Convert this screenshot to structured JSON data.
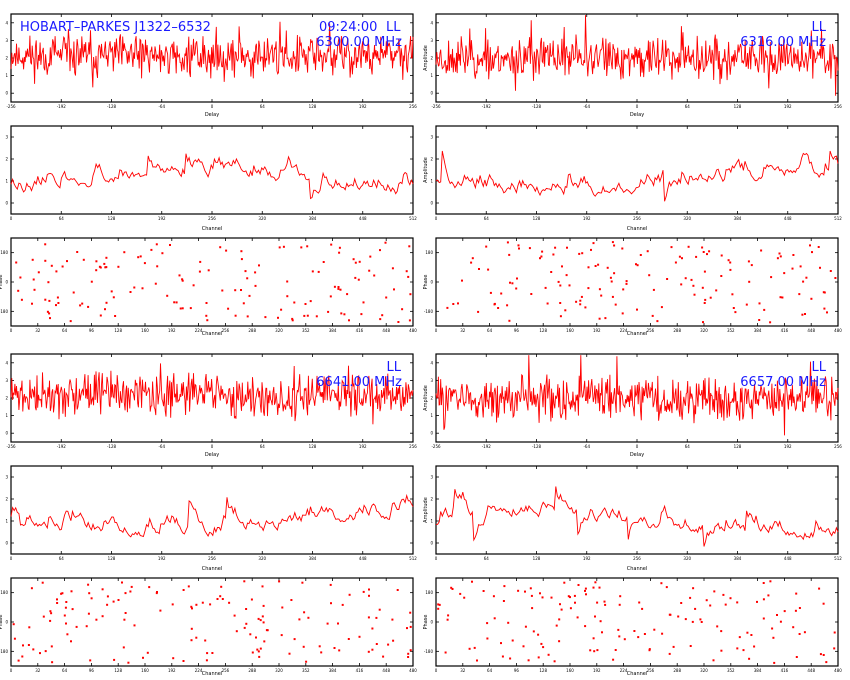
{
  "header": {
    "title": "HOBART–PARKES J1322–6532",
    "time": "09:24:00",
    "pol_ll_1": "LL",
    "pol_ll_2": "LL",
    "pol_ll_3": "LL",
    "pol_ll_4": "LL",
    "freq_1": "6300.00 MHz",
    "freq_2": "6316.00 MHz",
    "freq_3": "6641.00 MHz",
    "freq_4": "6657.00 MHz"
  },
  "colors": {
    "trace": "#ff0000",
    "overlay_text": "#1a1aff",
    "axes": "#000000"
  },
  "chart_data": [
    {
      "type": "line",
      "panel": "delay",
      "block": 1,
      "col": 1,
      "xlabel": "Delay",
      "ylabel": "",
      "xlim": [
        -256,
        256
      ],
      "ylim": [
        0,
        4
      ],
      "x_ticks": [
        "-256",
        "-192",
        "-128",
        "-64",
        "0",
        "64",
        "128",
        "192",
        "256"
      ],
      "y_ticks": [
        "0",
        "1",
        "2",
        "3",
        "4"
      ],
      "seed": 11,
      "mean": 2.1,
      "spread": 0.9
    },
    {
      "type": "line",
      "panel": "delay",
      "block": 1,
      "col": 2,
      "xlabel": "Delay",
      "ylabel": "Amplitude",
      "xlim": [
        -256,
        256
      ],
      "ylim": [
        0,
        4
      ],
      "x_ticks": [
        "-256",
        "-192",
        "-128",
        "-64",
        "0",
        "64",
        "128",
        "192",
        "256"
      ],
      "y_ticks": [
        "0",
        "1",
        "2",
        "3",
        "4"
      ],
      "seed": 23,
      "mean": 2.0,
      "spread": 0.9
    },
    {
      "type": "line",
      "panel": "channel",
      "block": 1,
      "col": 1,
      "xlabel": "Channel",
      "ylabel": "",
      "xlim": [
        0,
        512
      ],
      "ylim": [
        0,
        3
      ],
      "x_ticks": [
        "0",
        "64",
        "128",
        "192",
        "256",
        "320",
        "384",
        "448",
        "512"
      ],
      "y_ticks": [
        "0",
        "1",
        "2",
        "3"
      ],
      "seed": 37,
      "mean": 1.0,
      "spread": 0.85
    },
    {
      "type": "line",
      "panel": "channel",
      "block": 1,
      "col": 2,
      "xlabel": "Channel",
      "ylabel": "Amplitude",
      "xlim": [
        0,
        512
      ],
      "ylim": [
        0,
        3
      ],
      "x_ticks": [
        "0",
        "64",
        "128",
        "192",
        "256",
        "320",
        "384",
        "448",
        "512"
      ],
      "y_ticks": [
        "0",
        "1",
        "2",
        "3"
      ],
      "seed": 41,
      "mean": 1.0,
      "spread": 0.85
    },
    {
      "type": "scatter",
      "panel": "phase",
      "block": 1,
      "col": 1,
      "xlabel": "Channel",
      "ylabel": "Phase",
      "xlim": [
        0,
        512
      ],
      "ylim": [
        -180,
        180
      ],
      "x_ticks": [
        "0",
        "32",
        "64",
        "96",
        "128",
        "160",
        "192",
        "224",
        "256",
        "288",
        "320",
        "352",
        "384",
        "416",
        "448",
        "480"
      ],
      "y_ticks": [
        "-180",
        "0",
        "180"
      ],
      "seed": 53,
      "count": 150
    },
    {
      "type": "scatter",
      "panel": "phase",
      "block": 1,
      "col": 2,
      "xlabel": "Channel",
      "ylabel": "Phase",
      "xlim": [
        0,
        512
      ],
      "ylim": [
        -180,
        180
      ],
      "x_ticks": [
        "0",
        "32",
        "64",
        "96",
        "128",
        "160",
        "192",
        "224",
        "256",
        "288",
        "320",
        "352",
        "384",
        "416",
        "448",
        "480"
      ],
      "y_ticks": [
        "-180",
        "0",
        "180"
      ],
      "seed": 61,
      "count": 150
    },
    {
      "type": "line",
      "panel": "delay",
      "block": 2,
      "col": 1,
      "xlabel": "Delay",
      "ylabel": "",
      "xlim": [
        -256,
        256
      ],
      "ylim": [
        0,
        4
      ],
      "x_ticks": [
        "-256",
        "-192",
        "-128",
        "-64",
        "0",
        "64",
        "128",
        "192",
        "256"
      ],
      "y_ticks": [
        "0",
        "1",
        "2",
        "3",
        "4"
      ],
      "seed": 71,
      "mean": 2.1,
      "spread": 0.9
    },
    {
      "type": "line",
      "panel": "delay",
      "block": 2,
      "col": 2,
      "xlabel": "Delay",
      "ylabel": "Amplitude",
      "xlim": [
        -256,
        256
      ],
      "ylim": [
        0,
        4
      ],
      "x_ticks": [
        "-256",
        "-192",
        "-128",
        "-64",
        "0",
        "64",
        "128",
        "192",
        "256"
      ],
      "y_ticks": [
        "0",
        "1",
        "2",
        "3",
        "4"
      ],
      "seed": 83,
      "mean": 2.0,
      "spread": 0.9
    },
    {
      "type": "line",
      "panel": "channel",
      "block": 2,
      "col": 1,
      "xlabel": "Channel",
      "ylabel": "",
      "xlim": [
        0,
        512
      ],
      "ylim": [
        0,
        3
      ],
      "x_ticks": [
        "0",
        "64",
        "128",
        "192",
        "256",
        "320",
        "384",
        "448",
        "512"
      ],
      "y_ticks": [
        "0",
        "1",
        "2",
        "3"
      ],
      "seed": 97,
      "mean": 1.0,
      "spread": 0.85
    },
    {
      "type": "line",
      "panel": "channel",
      "block": 2,
      "col": 2,
      "xlabel": "Channel",
      "ylabel": "Amplitude",
      "xlim": [
        0,
        512
      ],
      "ylim": [
        0,
        3
      ],
      "x_ticks": [
        "0",
        "64",
        "128",
        "192",
        "256",
        "320",
        "384",
        "448",
        "512"
      ],
      "y_ticks": [
        "0",
        "1",
        "2",
        "3"
      ],
      "seed": 101,
      "mean": 1.0,
      "spread": 0.85
    },
    {
      "type": "scatter",
      "panel": "phase",
      "block": 2,
      "col": 1,
      "xlabel": "Channel",
      "ylabel": "Phase",
      "xlim": [
        0,
        512
      ],
      "ylim": [
        -180,
        180
      ],
      "x_ticks": [
        "0",
        "32",
        "64",
        "96",
        "128",
        "160",
        "192",
        "224",
        "256",
        "288",
        "320",
        "352",
        "384",
        "416",
        "448",
        "480"
      ],
      "y_ticks": [
        "-180",
        "0",
        "180"
      ],
      "seed": 113,
      "count": 150
    },
    {
      "type": "scatter",
      "panel": "phase",
      "block": 2,
      "col": 2,
      "xlabel": "Channel",
      "ylabel": "Phase",
      "xlim": [
        0,
        512
      ],
      "ylim": [
        -180,
        180
      ],
      "x_ticks": [
        "0",
        "32",
        "64",
        "96",
        "128",
        "160",
        "192",
        "224",
        "256",
        "288",
        "320",
        "352",
        "384",
        "416",
        "448",
        "480"
      ],
      "y_ticks": [
        "-180",
        "0",
        "180"
      ],
      "seed": 127,
      "count": 150
    }
  ]
}
